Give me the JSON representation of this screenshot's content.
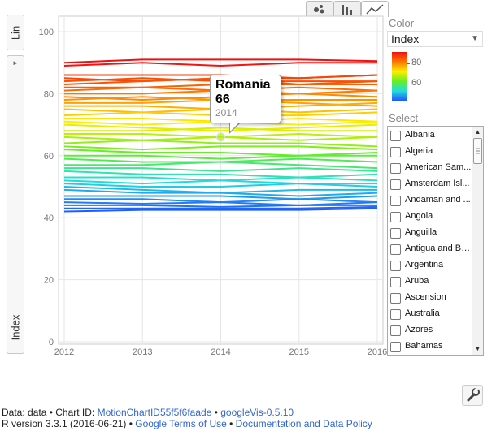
{
  "chart_data": {
    "type": "line",
    "xlabel": "",
    "ylabel": "Index",
    "x_axis_label": "Lin",
    "x_ticks": [
      "2012",
      "2013",
      "2014",
      "2015",
      "2016"
    ],
    "y_ticks": [
      "0",
      "20",
      "40",
      "60",
      "80",
      "100"
    ],
    "ylim": [
      0,
      100
    ],
    "xlim": [
      2012,
      2016
    ],
    "grid": true,
    "color_by": "Index",
    "color_scale_ticks": [
      "80",
      "60"
    ],
    "color_scale_range": [
      42,
      90
    ],
    "series_note": "",
    "series": [
      {
        "values": [
          90,
          91,
          91,
          91,
          90.5
        ]
      },
      {
        "values": [
          89,
          90,
          89,
          90,
          90
        ]
      },
      {
        "values": [
          86,
          86,
          86,
          85,
          86
        ]
      },
      {
        "values": [
          85,
          84,
          85,
          85,
          86
        ]
      },
      {
        "values": [
          84,
          85,
          84,
          84,
          84
        ]
      },
      {
        "values": [
          83,
          84,
          85,
          83,
          84
        ]
      },
      {
        "values": [
          82,
          82,
          83,
          83,
          83
        ]
      },
      {
        "values": [
          81,
          82,
          81,
          82,
          81
        ]
      },
      {
        "values": [
          80,
          80,
          81,
          80,
          81
        ]
      },
      {
        "values": [
          79,
          78,
          79,
          80,
          79
        ]
      },
      {
        "values": [
          78,
          79,
          78,
          78,
          78
        ]
      },
      {
        "values": [
          77,
          77,
          78,
          77,
          76
        ]
      },
      {
        "values": [
          76,
          76,
          75,
          76,
          77
        ]
      },
      {
        "values": [
          75,
          74,
          75,
          74,
          75
        ]
      },
      {
        "values": [
          73,
          74,
          73,
          73,
          74
        ]
      },
      {
        "values": [
          72,
          72,
          71,
          72,
          71
        ]
      },
      {
        "values": [
          71,
          70,
          71,
          70,
          71
        ]
      },
      {
        "values": [
          70,
          69,
          68,
          69,
          70
        ]
      },
      {
        "values": [
          68,
          68,
          69,
          68,
          68
        ]
      },
      {
        "values": [
          67,
          67,
          66,
          67,
          66
        ]
      },
      {
        "values": [
          66,
          65,
          66,
          65,
          66
        ]
      },
      {
        "values": [
          64,
          65,
          64,
          64,
          63
        ]
      },
      {
        "values": [
          63,
          62,
          63,
          63,
          62
        ]
      },
      {
        "values": [
          62,
          61,
          61,
          60,
          61
        ]
      },
      {
        "values": [
          60,
          60,
          59,
          60,
          60
        ]
      },
      {
        "values": [
          59,
          58,
          58,
          59,
          58
        ]
      },
      {
        "values": [
          57,
          57,
          58,
          57,
          56
        ]
      },
      {
        "values": [
          56,
          56,
          55,
          56,
          55
        ]
      },
      {
        "values": [
          55,
          54,
          54,
          53,
          54
        ]
      },
      {
        "values": [
          53,
          53,
          52,
          53,
          52
        ]
      },
      {
        "values": [
          52,
          51,
          52,
          51,
          51
        ]
      },
      {
        "values": [
          51,
          50,
          50,
          51,
          50
        ]
      },
      {
        "values": [
          50,
          49,
          48,
          49,
          49
        ]
      },
      {
        "values": [
          49,
          48,
          48,
          47,
          48
        ]
      },
      {
        "values": [
          47,
          47,
          47,
          46,
          47
        ]
      },
      {
        "values": [
          46,
          46,
          45,
          46,
          45
        ]
      },
      {
        "values": [
          45,
          44.5,
          45,
          44,
          45
        ]
      },
      {
        "values": [
          44,
          44,
          43.5,
          44,
          44
        ]
      },
      {
        "values": [
          43,
          43,
          43,
          43,
          43.5
        ]
      },
      {
        "values": [
          42,
          42.5,
          42.5,
          42.5,
          43
        ]
      }
    ],
    "highlight": {
      "name": "Romania",
      "value": "66",
      "year": "2014",
      "x": 2014,
      "y": 66
    }
  },
  "axis_tabs": {
    "x_selector": "Lin",
    "y_selector": "Index"
  },
  "tooltip": {
    "name": "Romania",
    "value": "66",
    "year": "2014"
  },
  "chart_type_tabs": [
    {
      "name": "bubble-icon"
    },
    {
      "name": "bar-icon"
    },
    {
      "name": "line-icon"
    }
  ],
  "panel": {
    "color_label": "Color",
    "color_selected": "Index",
    "select_label": "Select",
    "legend_ticks": [
      "80",
      "60"
    ],
    "countries": [
      "Albania",
      "Algeria",
      "American Sam...",
      "Amsterdam Isl...",
      "Andaman and ...",
      "Angola",
      "Anguilla",
      "Antigua and Ba...",
      "Argentina",
      "Aruba",
      "Ascension",
      "Australia",
      "Azores",
      "Bahamas"
    ]
  },
  "footer": {
    "line1_prefix": "Data: data • Chart ID: ",
    "chart_id": "MotionChartID55f5f6faade",
    "sep1": " • ",
    "googlevis": "googleVis-0.5.10",
    "line2_prefix": "R version 3.3.1 (2016-06-21) • ",
    "terms": "Google Terms of Use",
    "sep2": " • ",
    "policy": "Documentation and Data Policy"
  },
  "colors": {
    "accent_link": "#3366cc",
    "grid": "#e6e6e6"
  }
}
